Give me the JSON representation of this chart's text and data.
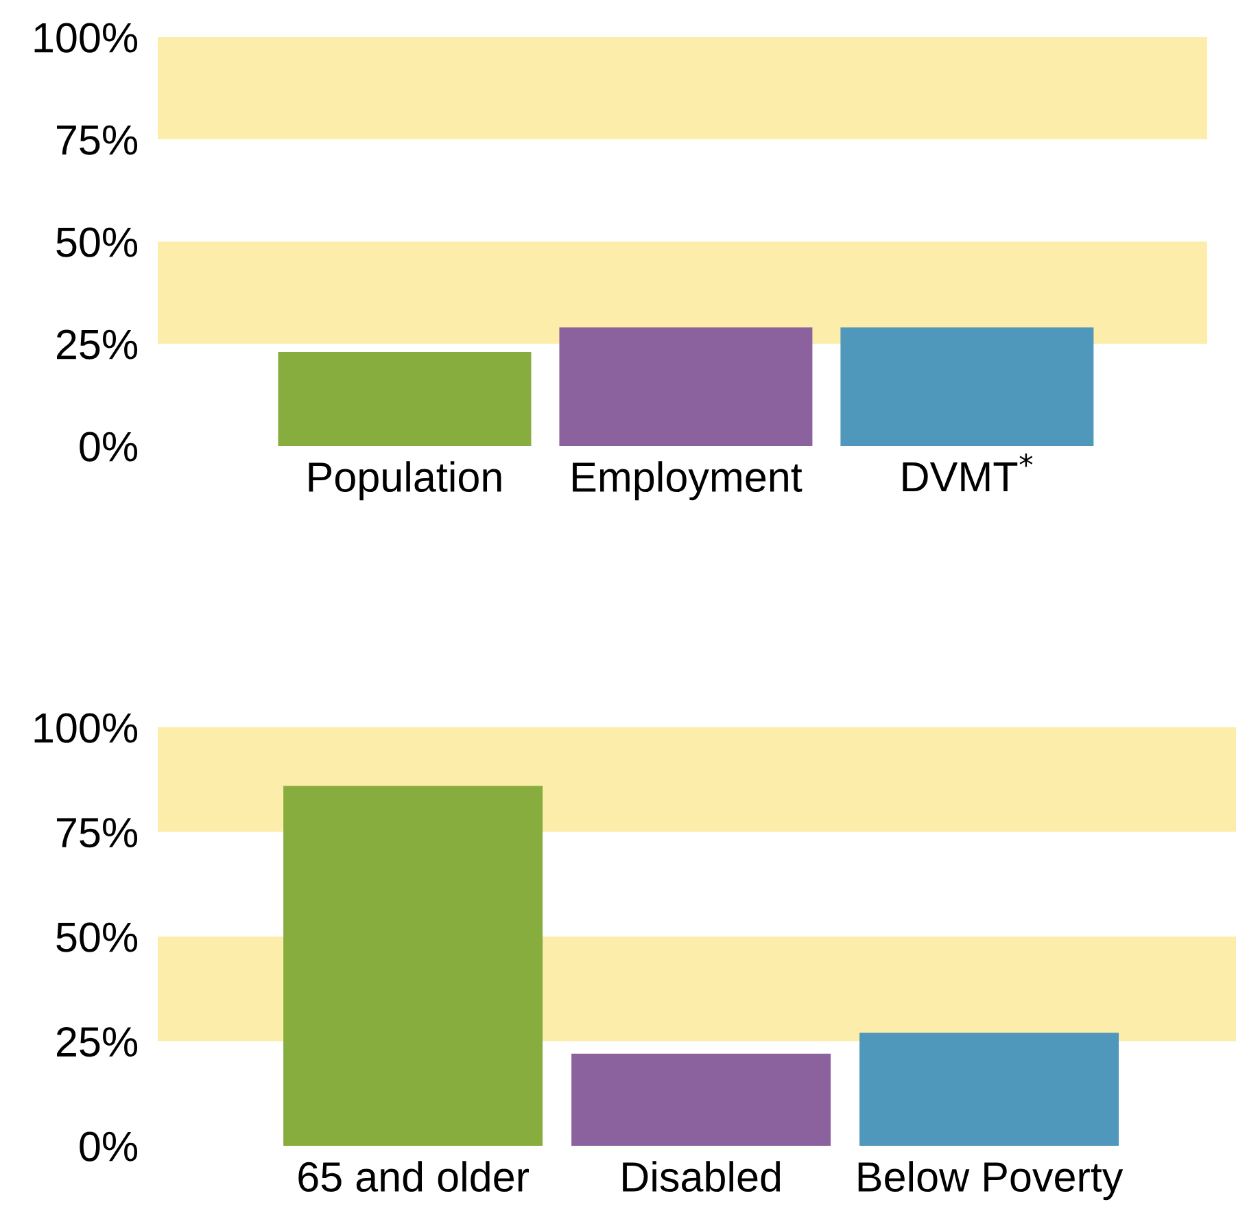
{
  "chart_data": [
    {
      "type": "bar",
      "categories": [
        "Population",
        "Employment",
        "DVMT$^{*}$"
      ],
      "values": [
        23,
        29,
        29
      ],
      "colors": [
        "#87ad3e",
        "#8b629e",
        "#4f98bc"
      ],
      "ylim": [
        0,
        100
      ],
      "yticks": [
        {
          "value": 0,
          "label": "0%"
        },
        {
          "value": 25,
          "label": "25%"
        },
        {
          "value": 50,
          "label": "50%"
        },
        {
          "value": 75,
          "label": "75%"
        },
        {
          "value": 100,
          "label": "100%"
        }
      ],
      "bands": [
        {
          "axis": "y",
          "from": 25,
          "to": 50,
          "color": "#fdedab"
        },
        {
          "axis": "y",
          "from": 75,
          "to": 100,
          "color": "#fdedab"
        }
      ]
    },
    {
      "type": "bar",
      "categories": [
        "65 and older",
        "Disabled",
        "Below Poverty"
      ],
      "values": [
        86,
        22,
        27
      ],
      "colors": [
        "#87ad3e",
        "#8b629e",
        "#4f98bc"
      ],
      "ylim": [
        0,
        100
      ],
      "yticks": [
        {
          "value": 0,
          "label": "0%"
        },
        {
          "value": 25,
          "label": "25%"
        },
        {
          "value": 50,
          "label": "50%"
        },
        {
          "value": 75,
          "label": "75%"
        },
        {
          "value": 100,
          "label": "100%"
        }
      ],
      "bands": [
        {
          "axis": "y",
          "from": 25,
          "to": 50,
          "color": "#fdedab"
        },
        {
          "axis": "y",
          "from": 75,
          "to": 100,
          "color": "#fdedab"
        }
      ]
    }
  ]
}
